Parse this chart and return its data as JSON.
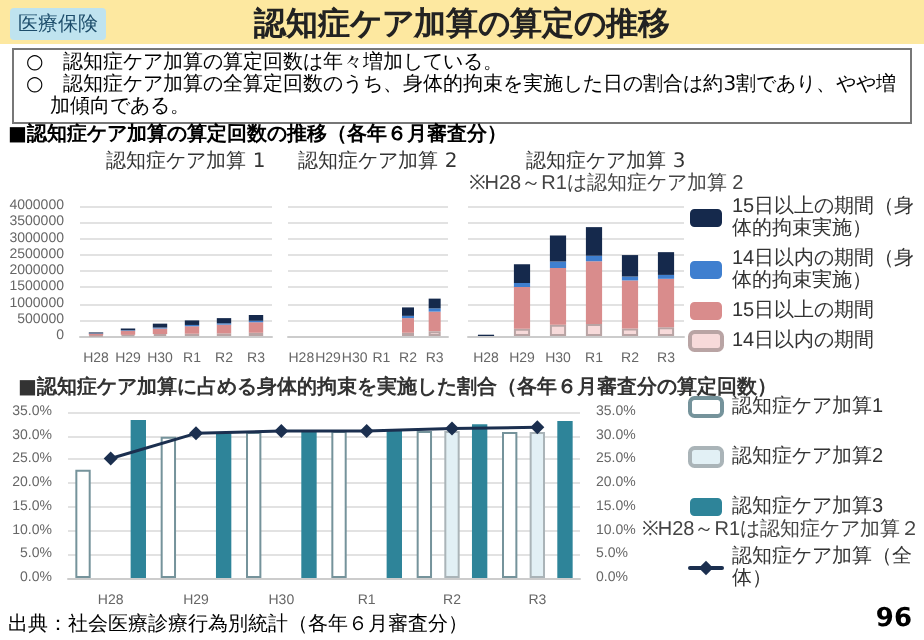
{
  "chart_data": [
    {
      "type": "bar",
      "title": "認知症ケア加算 1",
      "stacked": true,
      "grid": "y",
      "annotations": [
        "医療保険",
        "認知症ケア加算の算定の推移",
        "○　認知症ケア加算の算定回数は年々増加している。",
        "○　認知症ケア加算の全算定回数のうち、身体的拘束を実施した日の割合は約3割であり、やや増加傾向である。",
        "■認知症ケア加算の算定回数の推移（各年６月審査分）"
      ],
      "categories": [
        "H28",
        "H29",
        "H30",
        "R1",
        "R2",
        "R3"
      ],
      "ylim": [
        0,
        4000000
      ],
      "yticks": [
        0,
        500000,
        1000000,
        1500000,
        2000000,
        2500000,
        3000000,
        3500000,
        4000000
      ],
      "series": [
        {
          "color": "#f7dada",
          "values": [
            20000,
            40000,
            60000,
            70000,
            80000,
            100000
          ]
        },
        {
          "color": "#d98c8c",
          "values": [
            50000,
            120000,
            170000,
            230000,
            270000,
            320000
          ]
        },
        {
          "color": "#3f7fcf",
          "values": [
            10000,
            20000,
            30000,
            40000,
            40000,
            50000
          ]
        },
        {
          "color": "#15294c",
          "values": [
            30000,
            50000,
            120000,
            140000,
            160000,
            180000
          ]
        }
      ]
    },
    {
      "type": "bar",
      "title": "認知症ケア加算 2",
      "stacked": true,
      "grid": "y",
      "tick_labels": "x",
      "categories": [
        "H28",
        "H29",
        "H30",
        "R1",
        "R2",
        "R3"
      ],
      "ylim": [
        0,
        4000000
      ],
      "yticks": [
        0,
        500000,
        1000000,
        1500000,
        2000000,
        2500000,
        3000000,
        3500000,
        4000000
      ],
      "series": [
        {
          "color": "#f7dada",
          "values": [
            null,
            null,
            null,
            null,
            100000,
            150000
          ]
        },
        {
          "color": "#d98c8c",
          "values": [
            null,
            null,
            null,
            null,
            450000,
            600000
          ]
        },
        {
          "color": "#3f7fcf",
          "values": [
            null,
            null,
            null,
            null,
            70000,
            100000
          ]
        },
        {
          "color": "#15294c",
          "values": [
            null,
            null,
            null,
            null,
            260000,
            300000
          ]
        }
      ]
    },
    {
      "type": "bar",
      "title": "認知症ケア加算 3",
      "subtitle": "※H28～R1は認知症ケア加算 2",
      "stacked": true,
      "grid": "y",
      "tick_labels": "x",
      "legend": "right",
      "categories": [
        "H28",
        "H29",
        "H30",
        "R1",
        "R2",
        "R3"
      ],
      "ylim": [
        0,
        4000000
      ],
      "yticks": [
        0,
        500000,
        1000000,
        1500000,
        2000000,
        2500000,
        3000000,
        3500000,
        4000000
      ],
      "series": [
        {
          "name": "14日以内の期間",
          "color": "#f7dada",
          "values": [
            null,
            220000,
            350000,
            370000,
            230000,
            270000
          ]
        },
        {
          "name": "15日以上の期間",
          "color": "#d98c8c",
          "values": [
            null,
            1290000,
            1740000,
            1930000,
            1480000,
            1490000
          ]
        },
        {
          "name": "14日以内の期間（身体的拘束実施）",
          "color": "#3f7fcf",
          "values": [
            null,
            120000,
            200000,
            170000,
            120000,
            120000
          ]
        },
        {
          "name": "15日以上の期間（身体的拘束実施）",
          "color": "#15294c",
          "values": [
            40000,
            580000,
            800000,
            880000,
            660000,
            700000
          ]
        }
      ]
    },
    {
      "type": "bar",
      "title": "■認知症ケア加算に占める身体的拘束を実施した割合（各年６月審査分の算定回数）",
      "grid": "y",
      "legend": "right",
      "marker": "diamond",
      "line_style": "solid",
      "annotations": [
        "※H28～R1は認知症ケア加算２",
        "出典：社会医療診療行為別統計（各年６月審査分）",
        "96"
      ],
      "categories": [
        "H28",
        "H29",
        "H30",
        "R1",
        "R2",
        "R3"
      ],
      "ylim": [
        0,
        35
      ],
      "yticks": [
        {
          "value": 0,
          "label": "0.0%"
        },
        {
          "value": 5,
          "label": "5.0%"
        },
        {
          "value": 10,
          "label": "10.0%"
        },
        {
          "value": 15,
          "label": "15.0%"
        },
        {
          "value": 20,
          "label": "20.0%"
        },
        {
          "value": 25,
          "label": "25.0%"
        },
        {
          "value": 30,
          "label": "30.0%"
        },
        {
          "value": 35,
          "label": "35.0%"
        }
      ],
      "y2lim": [
        0,
        35
      ],
      "y2ticks": [
        {
          "value": 0,
          "label": "0.0%"
        },
        {
          "value": 5,
          "label": "5.0%"
        },
        {
          "value": 10,
          "label": "10.0%"
        },
        {
          "value": 15,
          "label": "15.0%"
        },
        {
          "value": 20,
          "label": "20.0%"
        },
        {
          "value": 25,
          "label": "25.0%"
        },
        {
          "value": 30,
          "label": "30.0%"
        },
        {
          "value": 35,
          "label": "35.0%"
        }
      ],
      "series": [
        {
          "name": "認知症ケア加算1",
          "color": "#ffffff",
          "values": [
            22.8,
            29.8,
            30.8,
            31.0,
            31.0,
            30.8
          ]
        },
        {
          "name": "認知症ケア加算2",
          "color": "#e2f0f5",
          "values": [
            null,
            null,
            null,
            null,
            31.0,
            30.8
          ]
        },
        {
          "name": "認知症ケア加算3",
          "color": "#2e8499",
          "values": [
            33.3,
            30.5,
            31.0,
            31.2,
            32.4,
            33.1
          ]
        },
        {
          "name": "認知症ケア加算（全体）",
          "type": "line",
          "color": "#1b2f4f",
          "values": [
            25.2,
            30.5,
            31.0,
            31.0,
            31.5,
            31.8
          ]
        }
      ]
    }
  ]
}
